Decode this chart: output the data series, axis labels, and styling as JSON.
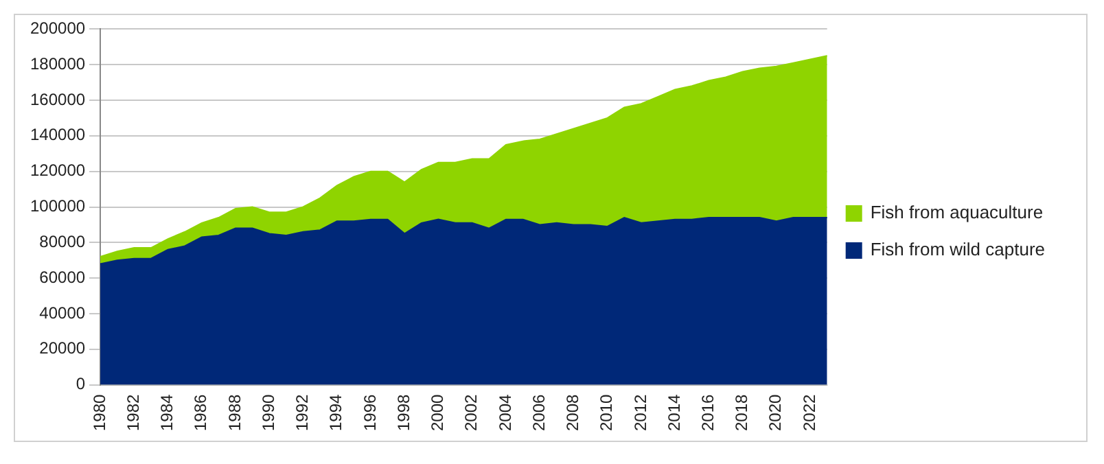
{
  "chart_data": {
    "type": "area",
    "stacked": true,
    "categories": [
      "1980",
      null,
      "1982",
      null,
      "1984",
      null,
      "1986",
      null,
      "1988",
      null,
      "1990",
      null,
      "1992",
      null,
      "1994",
      null,
      "1996",
      null,
      "1998",
      null,
      "2000",
      null,
      "2002",
      null,
      "2004",
      null,
      "2006",
      null,
      "2008",
      null,
      "2010",
      null,
      "2012",
      null,
      "2014",
      null,
      "2016",
      null,
      "2018",
      null,
      "2020",
      null,
      "2022",
      null
    ],
    "series": [
      {
        "name": "Fish from wild capture",
        "color": "#002878",
        "values": [
          68000,
          70000,
          71000,
          71000,
          76000,
          78000,
          83000,
          84000,
          88000,
          88000,
          85000,
          84000,
          86000,
          87000,
          92000,
          92000,
          93000,
          93000,
          85000,
          91000,
          93000,
          91000,
          91000,
          88000,
          93000,
          93000,
          90000,
          91000,
          90000,
          90000,
          89000,
          94000,
          91000,
          92000,
          93000,
          93000,
          94000,
          94000,
          94000,
          94000,
          92000,
          94000,
          94000,
          94000
        ]
      },
      {
        "name": "Fish from aquaculture",
        "color": "#8fd400",
        "values": [
          4000,
          5000,
          6000,
          6000,
          6000,
          8000,
          8000,
          10000,
          11000,
          12000,
          12000,
          13000,
          14000,
          18000,
          20000,
          25000,
          27000,
          27000,
          29000,
          30000,
          32000,
          34000,
          36000,
          39000,
          42000,
          44000,
          48000,
          50000,
          54000,
          57000,
          61000,
          62000,
          67000,
          70000,
          73000,
          75000,
          77000,
          79000,
          82000,
          84000,
          87000,
          87000,
          89000,
          91000
        ]
      }
    ],
    "ylim": [
      0,
      200000
    ],
    "yticks": [
      0,
      20000,
      40000,
      60000,
      80000,
      100000,
      120000,
      140000,
      160000,
      180000,
      200000
    ],
    "grid": "y",
    "legend": "right"
  }
}
